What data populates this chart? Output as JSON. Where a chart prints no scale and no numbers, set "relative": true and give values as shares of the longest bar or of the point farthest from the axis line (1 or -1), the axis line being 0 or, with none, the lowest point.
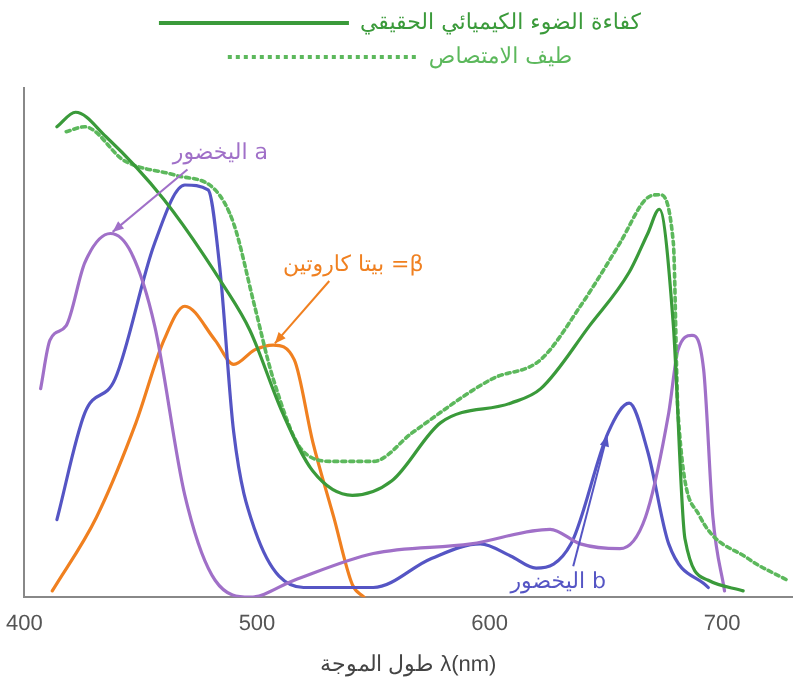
{
  "chart_data": {
    "type": "line",
    "relative": true,
    "xlabel": "طول الموجة λ(nm)",
    "xlim": [
      400,
      730
    ],
    "xticks": [
      400,
      500,
      600,
      700
    ],
    "tick_labels": "x",
    "grid": false,
    "legend": "top",
    "marker": "none",
    "series": [
      {
        "name": "كفاءة الضوء الكيميائي الحقيقي",
        "color": "#3a9a3a",
        "line_style": "solid",
        "x": [
          414,
          422,
          435,
          460,
          486,
          497,
          511,
          524,
          541,
          558,
          579,
          609,
          622,
          643,
          660,
          668,
          673,
          679,
          684,
          694,
          709
        ],
        "values": [
          0.97,
          1.0,
          0.95,
          0.82,
          0.64,
          0.55,
          0.38,
          0.26,
          0.21,
          0.24,
          0.36,
          0.4,
          0.43,
          0.56,
          0.67,
          0.75,
          0.8,
          0.56,
          0.12,
          0.035,
          0.013
        ]
      },
      {
        "name": "طيف الامتصاص",
        "color": "#5cb85c",
        "line_style": "dotted",
        "x": [
          418,
          426,
          443,
          465,
          482,
          490,
          499,
          507,
          520,
          533,
          550,
          567,
          601,
          622,
          639,
          656,
          667,
          673,
          679,
          681,
          690,
          711,
          728
        ],
        "values": [
          0.96,
          0.97,
          0.9,
          0.87,
          0.84,
          0.77,
          0.6,
          0.45,
          0.3,
          0.28,
          0.28,
          0.34,
          0.45,
          0.49,
          0.6,
          0.73,
          0.82,
          0.83,
          0.73,
          0.38,
          0.17,
          0.08,
          0.035
        ]
      },
      {
        "color": "#a070c8",
        "line_style": "solid",
        "x": [
          407,
          411,
          418,
          426,
          437,
          446,
          456,
          469,
          482,
          497,
          516,
          550,
          592,
          626,
          639,
          656,
          667,
          677,
          681,
          687,
          692,
          696,
          701
        ],
        "values": [
          0.43,
          0.53,
          0.56,
          0.69,
          0.75,
          0.71,
          0.56,
          0.21,
          0.035,
          0,
          0.035,
          0.09,
          0.11,
          0.14,
          0.11,
          0.1,
          0.165,
          0.38,
          0.51,
          0.54,
          0.47,
          0.165,
          0.013
        ]
      },
      {
        "color": "#5555c4",
        "line_style": "solid",
        "x": [
          414,
          426,
          439,
          456,
          469,
          479,
          484,
          490,
          499,
          520,
          550,
          575,
          596,
          609,
          620,
          635,
          651,
          660,
          668,
          677,
          694
        ],
        "values": [
          0.16,
          0.38,
          0.45,
          0.73,
          0.85,
          0.84,
          0.68,
          0.34,
          0.14,
          0.02,
          0.02,
          0.08,
          0.11,
          0.085,
          0.06,
          0.11,
          0.34,
          0.4,
          0.3,
          0.11,
          0.02
        ]
      },
      {
        "color": "#f08020",
        "line_style": "solid",
        "x": [
          412,
          431,
          448,
          460,
          469,
          482,
          490,
          499,
          507,
          516,
          524,
          533,
          541,
          546
        ],
        "values": [
          0.013,
          0.165,
          0.36,
          0.53,
          0.6,
          0.53,
          0.48,
          0.51,
          0.52,
          0.49,
          0.32,
          0.165,
          0.026,
          0
        ]
      }
    ],
    "annotations": [
      {
        "text": "اليخضور a",
        "x": 437,
        "y": 0.75
      },
      {
        "text": "بيتا كاروتين =β",
        "x": 507,
        "y": 0.52
      },
      {
        "text": "اليخضور b",
        "x": 651,
        "y": 0.34
      }
    ]
  }
}
